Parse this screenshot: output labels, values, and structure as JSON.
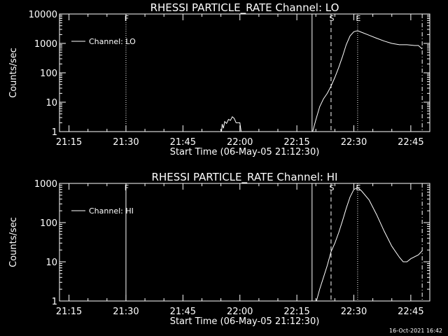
{
  "chart_data": [
    {
      "type": "line",
      "title": "RHESSI PARTICLE_RATE Channel: LO",
      "xlabel": "Start Time (06-May-05 21:12:30)",
      "ylabel": "Counts/sec",
      "y_scale": "log",
      "xlim": [
        "21:12:30",
        "22:50:00"
      ],
      "ylim": [
        1,
        10000
      ],
      "x_ticks": [
        "21:15",
        "21:30",
        "21:45",
        "22:00",
        "22:15",
        "22:30",
        "22:45"
      ],
      "y_ticks": [
        "1",
        "10",
        "100",
        "1000",
        "10000"
      ],
      "legend": {
        "entries": [
          "Channel: LO"
        ],
        "position": "top-left"
      },
      "series": [
        {
          "name": "Channel: LO",
          "points": [
            [
              "21:55:10",
              1
            ],
            [
              "21:55:20",
              1.8
            ],
            [
              "21:55:40",
              1.3
            ],
            [
              "21:56:00",
              2.2
            ],
            [
              "21:56:30",
              1.9
            ],
            [
              "21:57:00",
              2.6
            ],
            [
              "21:57:30",
              2.4
            ],
            [
              "21:58:00",
              3.2
            ],
            [
              "21:58:30",
              2.8
            ],
            [
              "21:59:00",
              2.0
            ],
            [
              "22:00:00",
              2.0
            ],
            [
              "22:00:20",
              1
            ],
            [
              "22:19:10",
              1
            ],
            [
              "22:20:00",
              2.5
            ],
            [
              "22:21:00",
              7
            ],
            [
              "22:22:00",
              13
            ],
            [
              "22:23:00",
              20
            ],
            [
              "22:24:00",
              35
            ],
            [
              "22:25:00",
              70
            ],
            [
              "22:26:00",
              150
            ],
            [
              "22:27:00",
              350
            ],
            [
              "22:28:00",
              900
            ],
            [
              "22:29:00",
              1800
            ],
            [
              "22:30:00",
              2500
            ],
            [
              "22:31:00",
              2700
            ],
            [
              "22:32:00",
              2400
            ],
            [
              "22:34:00",
              1900
            ],
            [
              "22:36:00",
              1500
            ],
            [
              "22:38:00",
              1200
            ],
            [
              "22:40:00",
              1000
            ],
            [
              "22:42:00",
              900
            ],
            [
              "22:44:00",
              900
            ],
            [
              "22:46:00",
              850
            ],
            [
              "22:47:00",
              850
            ],
            [
              "22:48:00",
              650
            ]
          ]
        }
      ],
      "markers": [
        {
          "label": "F",
          "time": "21:30:00",
          "style": "dotted"
        },
        {
          "label": "S",
          "time": "22:24:00",
          "style": "dashed"
        },
        {
          "label": "E",
          "time": "22:31:00",
          "style": "dotted"
        },
        {
          "label": "",
          "time": "22:19:00",
          "style": "solid"
        },
        {
          "label": "",
          "time": "22:48:00",
          "style": "dash-dot"
        }
      ]
    },
    {
      "type": "line",
      "title": "RHESSI PARTICLE_RATE Channel: HI",
      "xlabel": "Start Time (06-May-05 21:12:30)",
      "ylabel": "Counts/sec",
      "y_scale": "log",
      "xlim": [
        "21:12:30",
        "22:50:00"
      ],
      "ylim": [
        1,
        1000
      ],
      "x_ticks": [
        "21:15",
        "21:30",
        "21:45",
        "22:00",
        "22:15",
        "22:30",
        "22:45"
      ],
      "y_ticks": [
        "1",
        "10",
        "100",
        "1000"
      ],
      "legend": {
        "entries": [
          "Channel: HI"
        ],
        "position": "top-left"
      },
      "series": [
        {
          "name": "Channel: HI",
          "points": [
            [
              "22:20:10",
              1
            ],
            [
              "22:21:00",
              2
            ],
            [
              "22:22:00",
              4
            ],
            [
              "22:23:00",
              8
            ],
            [
              "22:24:00",
              18
            ],
            [
              "22:25:00",
              30
            ],
            [
              "22:26:00",
              55
            ],
            [
              "22:27:00",
              110
            ],
            [
              "22:28:00",
              230
            ],
            [
              "22:29:00",
              450
            ],
            [
              "22:30:00",
              700
            ],
            [
              "22:31:00",
              780
            ],
            [
              "22:32:00",
              650
            ],
            [
              "22:34:00",
              380
            ],
            [
              "22:36:00",
              160
            ],
            [
              "22:38:00",
              60
            ],
            [
              "22:40:00",
              25
            ],
            [
              "22:42:00",
              13
            ],
            [
              "22:43:00",
              10
            ],
            [
              "22:44:00",
              10
            ],
            [
              "22:45:00",
              12
            ],
            [
              "22:47:00",
              15
            ],
            [
              "22:48:00",
              19
            ]
          ]
        }
      ],
      "markers": [
        {
          "label": "F",
          "time": "21:30:00",
          "style": "solid"
        },
        {
          "label": "S",
          "time": "22:24:00",
          "style": "dashed"
        },
        {
          "label": "E",
          "time": "22:31:00",
          "style": "dotted"
        },
        {
          "label": "",
          "time": "22:19:00",
          "style": "solid"
        },
        {
          "label": "",
          "time": "22:48:00",
          "style": "dash-dot"
        }
      ]
    }
  ],
  "footer": {
    "timestamp": "16-Oct-2021 16:42"
  },
  "colors": {
    "background": "#000000",
    "foreground": "#ffffff"
  }
}
